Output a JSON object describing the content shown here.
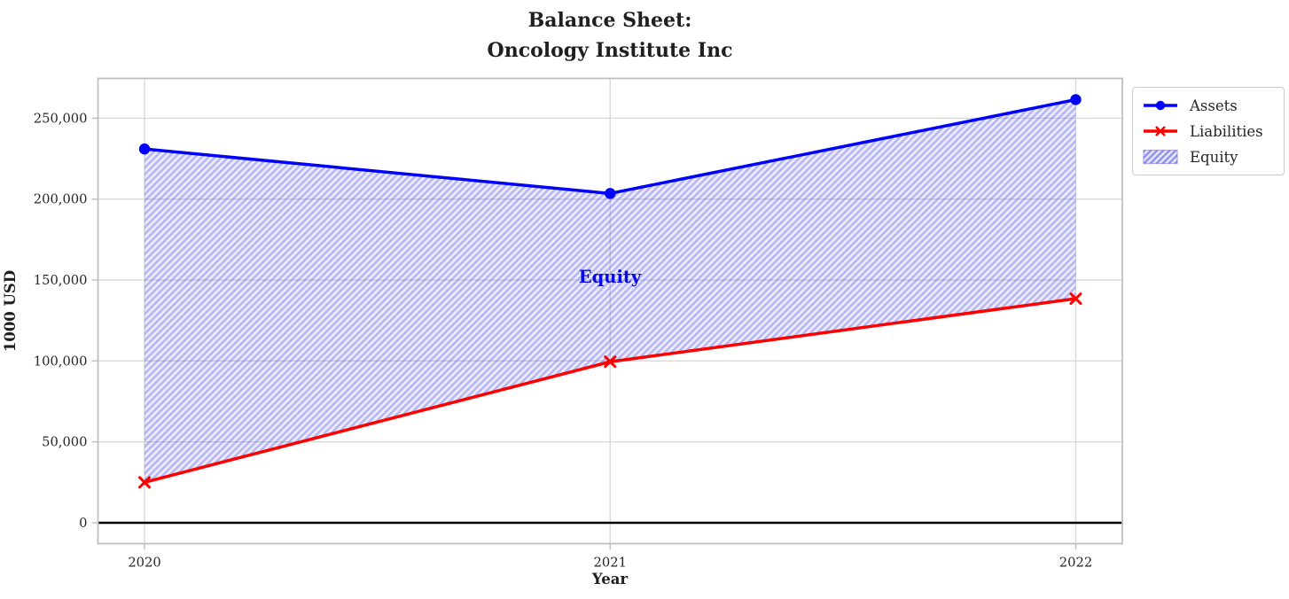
{
  "figure": {
    "background": "#ffffff"
  },
  "chart_data": {
    "type": "line",
    "title": "Balance Sheet:\nOncology Institute Inc",
    "xlabel": "Year",
    "ylabel": "1000 USD",
    "categories": [
      2020,
      2021,
      2022
    ],
    "x_ticklabels": [
      "2020",
      "2021",
      "2022"
    ],
    "y_ticks": [
      0,
      50000,
      100000,
      150000,
      200000,
      250000
    ],
    "y_ticklabels": [
      "0",
      "50,000",
      "100,000",
      "150,000",
      "200,000",
      "250,000"
    ],
    "xlim": [
      2019.9,
      2022.1
    ],
    "ylim": [
      -12900,
      274600
    ],
    "grid": true,
    "legend_position": "outside-upper-right",
    "series": [
      {
        "name": "Assets",
        "color": "#0000ff",
        "marker": "circle",
        "line_width": 3.5,
        "values": [
          231000,
          203500,
          261500
        ]
      },
      {
        "name": "Liabilities",
        "color": "#ff0000",
        "marker": "x",
        "line_width": 3.5,
        "values": [
          25000,
          99500,
          138500
        ]
      }
    ],
    "band": {
      "name": "Equity",
      "fill_between": [
        "Liabilities",
        "Assets"
      ],
      "hatch": "/",
      "color": "#5f5fe6",
      "alpha": 0.13,
      "equity_values": [
        206000,
        104000,
        123000
      ]
    },
    "annotation": {
      "text": "Equity",
      "x": 2021,
      "y": 151000,
      "color": "#0808e8"
    },
    "baseline": {
      "y": 0,
      "color": "#000000"
    },
    "colors": {
      "grid": "#d9d9d9",
      "spine": "#bfbfbf",
      "tick_label": "#262626"
    }
  },
  "legend": {
    "items": [
      {
        "label": "Assets",
        "swatch": "line-circle",
        "color": "#0000ff"
      },
      {
        "label": "Liabilities",
        "swatch": "line-x",
        "color": "#ff0000"
      },
      {
        "label": "Equity",
        "swatch": "hatched-patch",
        "color": "#9a9af0"
      }
    ]
  }
}
